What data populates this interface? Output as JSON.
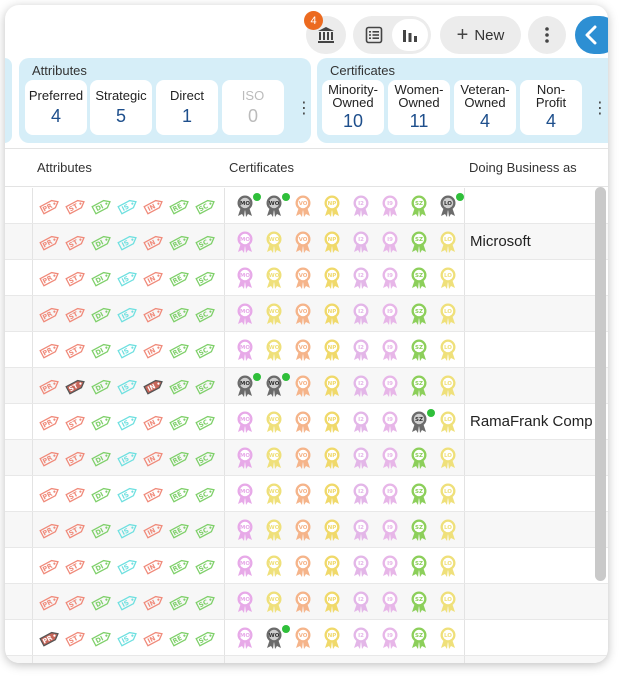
{
  "toolbar": {
    "notification_count": "4",
    "new_label": "New",
    "icons": {
      "bank": "bank-icon",
      "list": "list-view-icon",
      "chart": "chart-view-icon",
      "more": "more-vertical-icon",
      "collapse": "chevron-left-icon"
    }
  },
  "summary": {
    "attributes": {
      "title": "Attributes",
      "tiles": [
        {
          "label": "Preferred",
          "value": "4"
        },
        {
          "label": "Strategic",
          "value": "5"
        },
        {
          "label": "Direct",
          "value": "1"
        },
        {
          "label": "ISO",
          "value": "0"
        }
      ]
    },
    "certificates": {
      "title": "Certificates",
      "tiles": [
        {
          "label": "Minority-Owned",
          "l1": "Minority-",
          "l2": "Owned",
          "value": "10"
        },
        {
          "label": "Women-Owned",
          "l1": "Women-",
          "l2": "Owned",
          "value": "11"
        },
        {
          "label": "Veteran-Owned",
          "l1": "Veteran-",
          "l2": "Owned",
          "value": "4"
        },
        {
          "label": "Non-Profit",
          "l1": "Non-",
          "l2": "Profit",
          "value": "4"
        }
      ]
    }
  },
  "table": {
    "columns": {
      "attributes": "Attributes",
      "certificates": "Certificates",
      "dba": "Doing Business as"
    },
    "attribute_tags": [
      {
        "code": "PR",
        "color": "#f08a7a",
        "active_color": "#c8665a"
      },
      {
        "code": "ST",
        "color": "#f08a7a",
        "active_color": "#c8665a"
      },
      {
        "code": "DI",
        "color": "#7fd06a",
        "active_color": "#3fa13a"
      },
      {
        "code": "IS",
        "color": "#6fe0e0",
        "active_color": "#2fa9a9"
      },
      {
        "code": "IN",
        "color": "#f08a7a",
        "active_color": "#c8665a"
      },
      {
        "code": "RE",
        "color": "#7fd06a",
        "active_color": "#3fa13a"
      },
      {
        "code": "SC",
        "color": "#7fd06a",
        "active_color": "#3fa13a"
      }
    ],
    "certificate_badges": [
      {
        "code": "MO",
        "color": "#e7a9e8"
      },
      {
        "code": "WO",
        "color": "#efe07a"
      },
      {
        "code": "VO",
        "color": "#f5b48a"
      },
      {
        "code": "NP",
        "color": "#f0d96a"
      },
      {
        "code": "I2",
        "color": "#e3b6e8"
      },
      {
        "code": "I9",
        "color": "#e7b6e8"
      },
      {
        "code": "SZ",
        "color": "#8ccf5a"
      },
      {
        "code": "LO",
        "color": "#efe07a"
      }
    ],
    "active_color": "#6b6b6b",
    "rows": [
      {
        "dba": "",
        "active_tags": [],
        "active_certs": [
          0,
          1,
          7
        ]
      },
      {
        "dba": "Microsoft",
        "active_tags": [],
        "active_certs": []
      },
      {
        "dba": "",
        "active_tags": [],
        "active_certs": []
      },
      {
        "dba": "",
        "active_tags": [],
        "active_certs": []
      },
      {
        "dba": "",
        "active_tags": [],
        "active_certs": []
      },
      {
        "dba": "",
        "active_tags": [
          1,
          4
        ],
        "active_certs": [
          0,
          1
        ]
      },
      {
        "dba": "RamaFrank Comp",
        "active_tags": [],
        "active_certs": [
          6
        ]
      },
      {
        "dba": "",
        "active_tags": [],
        "active_certs": []
      },
      {
        "dba": "",
        "active_tags": [],
        "active_certs": []
      },
      {
        "dba": "",
        "active_tags": [],
        "active_certs": []
      },
      {
        "dba": "",
        "active_tags": [],
        "active_certs": []
      },
      {
        "dba": "",
        "active_tags": [],
        "active_certs": []
      },
      {
        "dba": "",
        "active_tags": [
          0
        ],
        "active_certs": [
          1
        ]
      },
      {
        "dba": "",
        "active_tags": [],
        "active_certs": []
      }
    ]
  }
}
